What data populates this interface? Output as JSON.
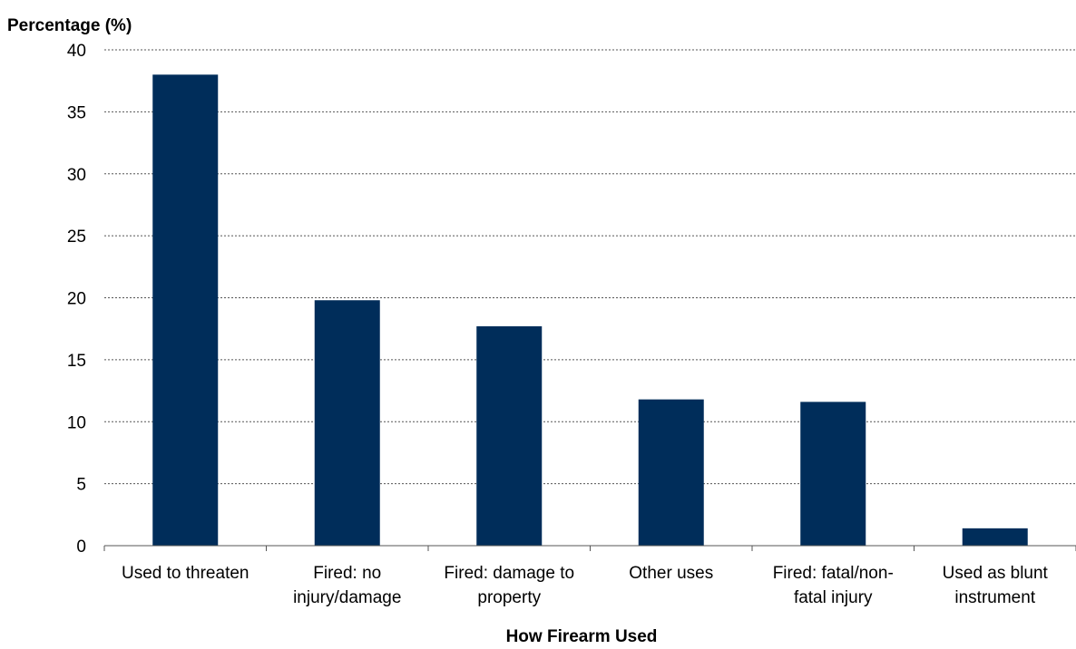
{
  "chart_data": {
    "type": "bar",
    "title": "",
    "ylabel": "Percentage (%)",
    "xlabel": "How Firearm Used",
    "categories": [
      [
        "Used to threaten"
      ],
      [
        "Fired: no",
        "injury/damage"
      ],
      [
        "Fired: damage to",
        "property"
      ],
      [
        "Other uses"
      ],
      [
        "Fired: fatal/non-",
        "fatal injury"
      ],
      [
        "Used as blunt",
        "instrument"
      ]
    ],
    "values": [
      38.0,
      19.8,
      17.7,
      11.8,
      11.6,
      1.4
    ],
    "ylim": [
      0,
      40
    ],
    "yticks": [
      0,
      5,
      10,
      15,
      20,
      25,
      30,
      35,
      40
    ],
    "grid": true,
    "legend": "none",
    "bar_color": "#002D5A"
  }
}
